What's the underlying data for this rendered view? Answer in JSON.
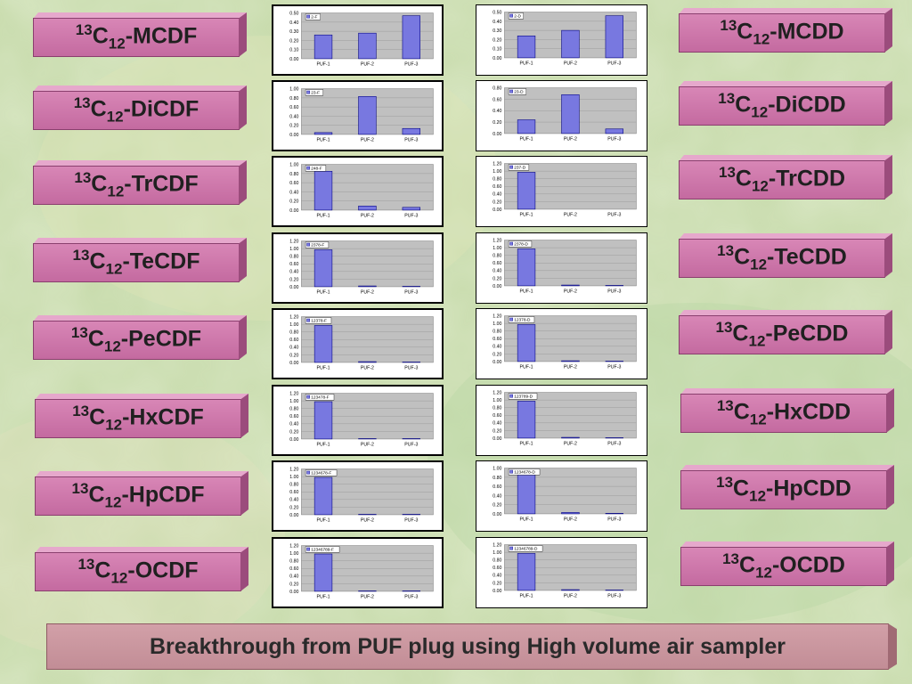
{
  "labels_left": [
    {
      "sup": "13",
      "base": "C",
      "sub": "12",
      "suffix": "-MCDF"
    },
    {
      "sup": "13",
      "base": "C",
      "sub": "12",
      "suffix": "-DiCDF"
    },
    {
      "sup": "13",
      "base": "C",
      "sub": "12",
      "suffix": "-TrCDF"
    },
    {
      "sup": "13",
      "base": "C",
      "sub": "12",
      "suffix": "-TeCDF"
    },
    {
      "sup": "13",
      "base": "C",
      "sub": "12",
      "suffix": "-PeCDF"
    },
    {
      "sup": "13",
      "base": "C",
      "sub": "12",
      "suffix": "-HxCDF"
    },
    {
      "sup": "13",
      "base": "C",
      "sub": "12",
      "suffix": "-HpCDF"
    },
    {
      "sup": "13",
      "base": "C",
      "sub": "12",
      "suffix": "-OCDF"
    }
  ],
  "labels_right": [
    {
      "sup": "13",
      "base": "C",
      "sub": "12",
      "suffix": "-MCDD"
    },
    {
      "sup": "13",
      "base": "C",
      "sub": "12",
      "suffix": "-DiCDD"
    },
    {
      "sup": "13",
      "base": "C",
      "sub": "12",
      "suffix": "-TrCDD"
    },
    {
      "sup": "13",
      "base": "C",
      "sub": "12",
      "suffix": "-TeCDD"
    },
    {
      "sup": "13",
      "base": "C",
      "sub": "12",
      "suffix": "-PeCDD"
    },
    {
      "sup": "13",
      "base": "C",
      "sub": "12",
      "suffix": "-HxCDD"
    },
    {
      "sup": "13",
      "base": "C",
      "sub": "12",
      "suffix": "-HpCDD"
    },
    {
      "sup": "13",
      "base": "C",
      "sub": "12",
      "suffix": "-OCDD"
    }
  ],
  "footer": {
    "title": "Breakthrough from PUF plug using High volume air sampler"
  },
  "colors": {
    "bar": "#7878e0",
    "bar_stroke": "#000080",
    "plot_bg": "#c0c0c0",
    "label": "#cd74a8"
  },
  "chart_data": [
    {
      "type": "bar",
      "categories": [
        "PUF-1",
        "PUF-2",
        "PUF-3"
      ],
      "series": [
        {
          "name": "2-F",
          "values": [
            0.26,
            0.28,
            0.47
          ]
        }
      ],
      "ylim": [
        0,
        0.5
      ],
      "yticks": [
        "0.50",
        "0.40",
        "0.30",
        "0.20",
        "0.10",
        "0.00"
      ]
    },
    {
      "type": "bar",
      "categories": [
        "PUF-1",
        "PUF-2",
        "PUF-3"
      ],
      "series": [
        {
          "name": "2-D",
          "values": [
            0.24,
            0.3,
            0.46
          ]
        }
      ],
      "ylim": [
        0,
        0.5
      ],
      "yticks": [
        "0.50",
        "0.40",
        "0.30",
        "0.20",
        "0.10",
        "0.00"
      ]
    },
    {
      "type": "bar",
      "categories": [
        "PUF-1",
        "PUF-2",
        "PUF-3"
      ],
      "series": [
        {
          "name": "23-F",
          "values": [
            0.04,
            0.83,
            0.13
          ]
        }
      ],
      "ylim": [
        0,
        1.0
      ],
      "yticks": [
        "1.00",
        "0.80",
        "0.60",
        "0.40",
        "0.20",
        "0.00"
      ]
    },
    {
      "type": "bar",
      "categories": [
        "PUF-1",
        "PUF-2",
        "PUF-3"
      ],
      "series": [
        {
          "name": "23-D",
          "values": [
            0.24,
            0.68,
            0.08
          ]
        }
      ],
      "ylim": [
        0,
        0.8
      ],
      "yticks": [
        "0.80",
        "0.60",
        "0.40",
        "0.20",
        "0.00"
      ]
    },
    {
      "type": "bar",
      "categories": [
        "PUF-1",
        "PUF-2",
        "PUF-3"
      ],
      "series": [
        {
          "name": "248-F",
          "values": [
            0.85,
            0.09,
            0.06
          ]
        }
      ],
      "ylim": [
        0,
        1.0
      ],
      "yticks": [
        "1.00",
        "0.80",
        "0.60",
        "0.40",
        "0.20",
        "0.00"
      ]
    },
    {
      "type": "bar",
      "categories": [
        "PUF-1",
        "PUF-2",
        "PUF-3"
      ],
      "series": [
        {
          "name": "237-D",
          "values": [
            0.97,
            0.0,
            0.0
          ]
        }
      ],
      "ylim": [
        0,
        1.2
      ],
      "yticks": [
        "1.20",
        "1.00",
        "0.80",
        "0.60",
        "0.40",
        "0.20",
        "0.00"
      ]
    },
    {
      "type": "bar",
      "categories": [
        "PUF-1",
        "PUF-2",
        "PUF-3"
      ],
      "series": [
        {
          "name": "2378-F",
          "values": [
            0.97,
            0.02,
            0.01
          ]
        }
      ],
      "ylim": [
        0,
        1.2
      ],
      "yticks": [
        "1.20",
        "1.00",
        "0.80",
        "0.60",
        "0.40",
        "0.20",
        "0.00"
      ]
    },
    {
      "type": "bar",
      "categories": [
        "PUF-1",
        "PUF-2",
        "PUF-3"
      ],
      "series": [
        {
          "name": "2378-D",
          "values": [
            0.97,
            0.02,
            0.01
          ]
        }
      ],
      "ylim": [
        0,
        1.2
      ],
      "yticks": [
        "1.20",
        "1.00",
        "0.80",
        "0.60",
        "0.40",
        "0.20",
        "0.00"
      ]
    },
    {
      "type": "bar",
      "categories": [
        "PUF-1",
        "PUF-2",
        "PUF-3"
      ],
      "series": [
        {
          "name": "12378-F",
          "values": [
            0.97,
            0.02,
            0.01
          ]
        }
      ],
      "ylim": [
        0,
        1.2
      ],
      "yticks": [
        "1.20",
        "1.00",
        "0.80",
        "0.60",
        "0.40",
        "0.20",
        "0.00"
      ]
    },
    {
      "type": "bar",
      "categories": [
        "PUF-1",
        "PUF-2",
        "PUF-3"
      ],
      "series": [
        {
          "name": "12378-D",
          "values": [
            0.97,
            0.02,
            0.01
          ]
        }
      ],
      "ylim": [
        0,
        1.2
      ],
      "yticks": [
        "1.20",
        "1.00",
        "0.80",
        "0.60",
        "0.40",
        "0.20",
        "0.00"
      ]
    },
    {
      "type": "bar",
      "categories": [
        "PUF-1",
        "PUF-2",
        "PUF-3"
      ],
      "series": [
        {
          "name": "123478-F",
          "values": [
            0.98,
            0.01,
            0.01
          ]
        }
      ],
      "ylim": [
        0,
        1.2
      ],
      "yticks": [
        "1.20",
        "1.00",
        "0.80",
        "0.60",
        "0.40",
        "0.20",
        "0.00"
      ]
    },
    {
      "type": "bar",
      "categories": [
        "PUF-1",
        "PUF-2",
        "PUF-3"
      ],
      "series": [
        {
          "name": "123789-D",
          "values": [
            0.97,
            0.02,
            0.01
          ]
        }
      ],
      "ylim": [
        0,
        1.2
      ],
      "yticks": [
        "1.20",
        "1.00",
        "0.80",
        "0.60",
        "0.40",
        "0.20",
        "0.00"
      ]
    },
    {
      "type": "bar",
      "categories": [
        "PUF-1",
        "PUF-2",
        "PUF-3"
      ],
      "series": [
        {
          "name": "1234678-F",
          "values": [
            0.98,
            0.01,
            0.01
          ]
        }
      ],
      "ylim": [
        0,
        1.2
      ],
      "yticks": [
        "1.20",
        "1.00",
        "0.80",
        "0.60",
        "0.40",
        "0.20",
        "0.00"
      ]
    },
    {
      "type": "bar",
      "categories": [
        "PUF-1",
        "PUF-2",
        "PUF-3"
      ],
      "series": [
        {
          "name": "1234678-D",
          "values": [
            0.96,
            0.03,
            0.01
          ]
        }
      ],
      "ylim": [
        0,
        1.0
      ],
      "yticks": [
        "1.00",
        "0.80",
        "0.60",
        "0.40",
        "0.20",
        "0.00"
      ]
    },
    {
      "type": "bar",
      "categories": [
        "PUF-1",
        "PUF-2",
        "PUF-3"
      ],
      "series": [
        {
          "name": "12346789-F",
          "values": [
            0.98,
            0.01,
            0.01
          ]
        }
      ],
      "ylim": [
        0,
        1.2
      ],
      "yticks": [
        "1.20",
        "1.00",
        "0.80",
        "0.60",
        "0.40",
        "0.20",
        "0.00"
      ]
    },
    {
      "type": "bar",
      "categories": [
        "PUF-1",
        "PUF-2",
        "PUF-3"
      ],
      "series": [
        {
          "name": "12346789-D",
          "values": [
            0.97,
            0.02,
            0.01
          ]
        }
      ],
      "ylim": [
        0,
        1.2
      ],
      "yticks": [
        "1.20",
        "1.00",
        "0.80",
        "0.60",
        "0.40",
        "0.20",
        "0.00"
      ]
    }
  ]
}
